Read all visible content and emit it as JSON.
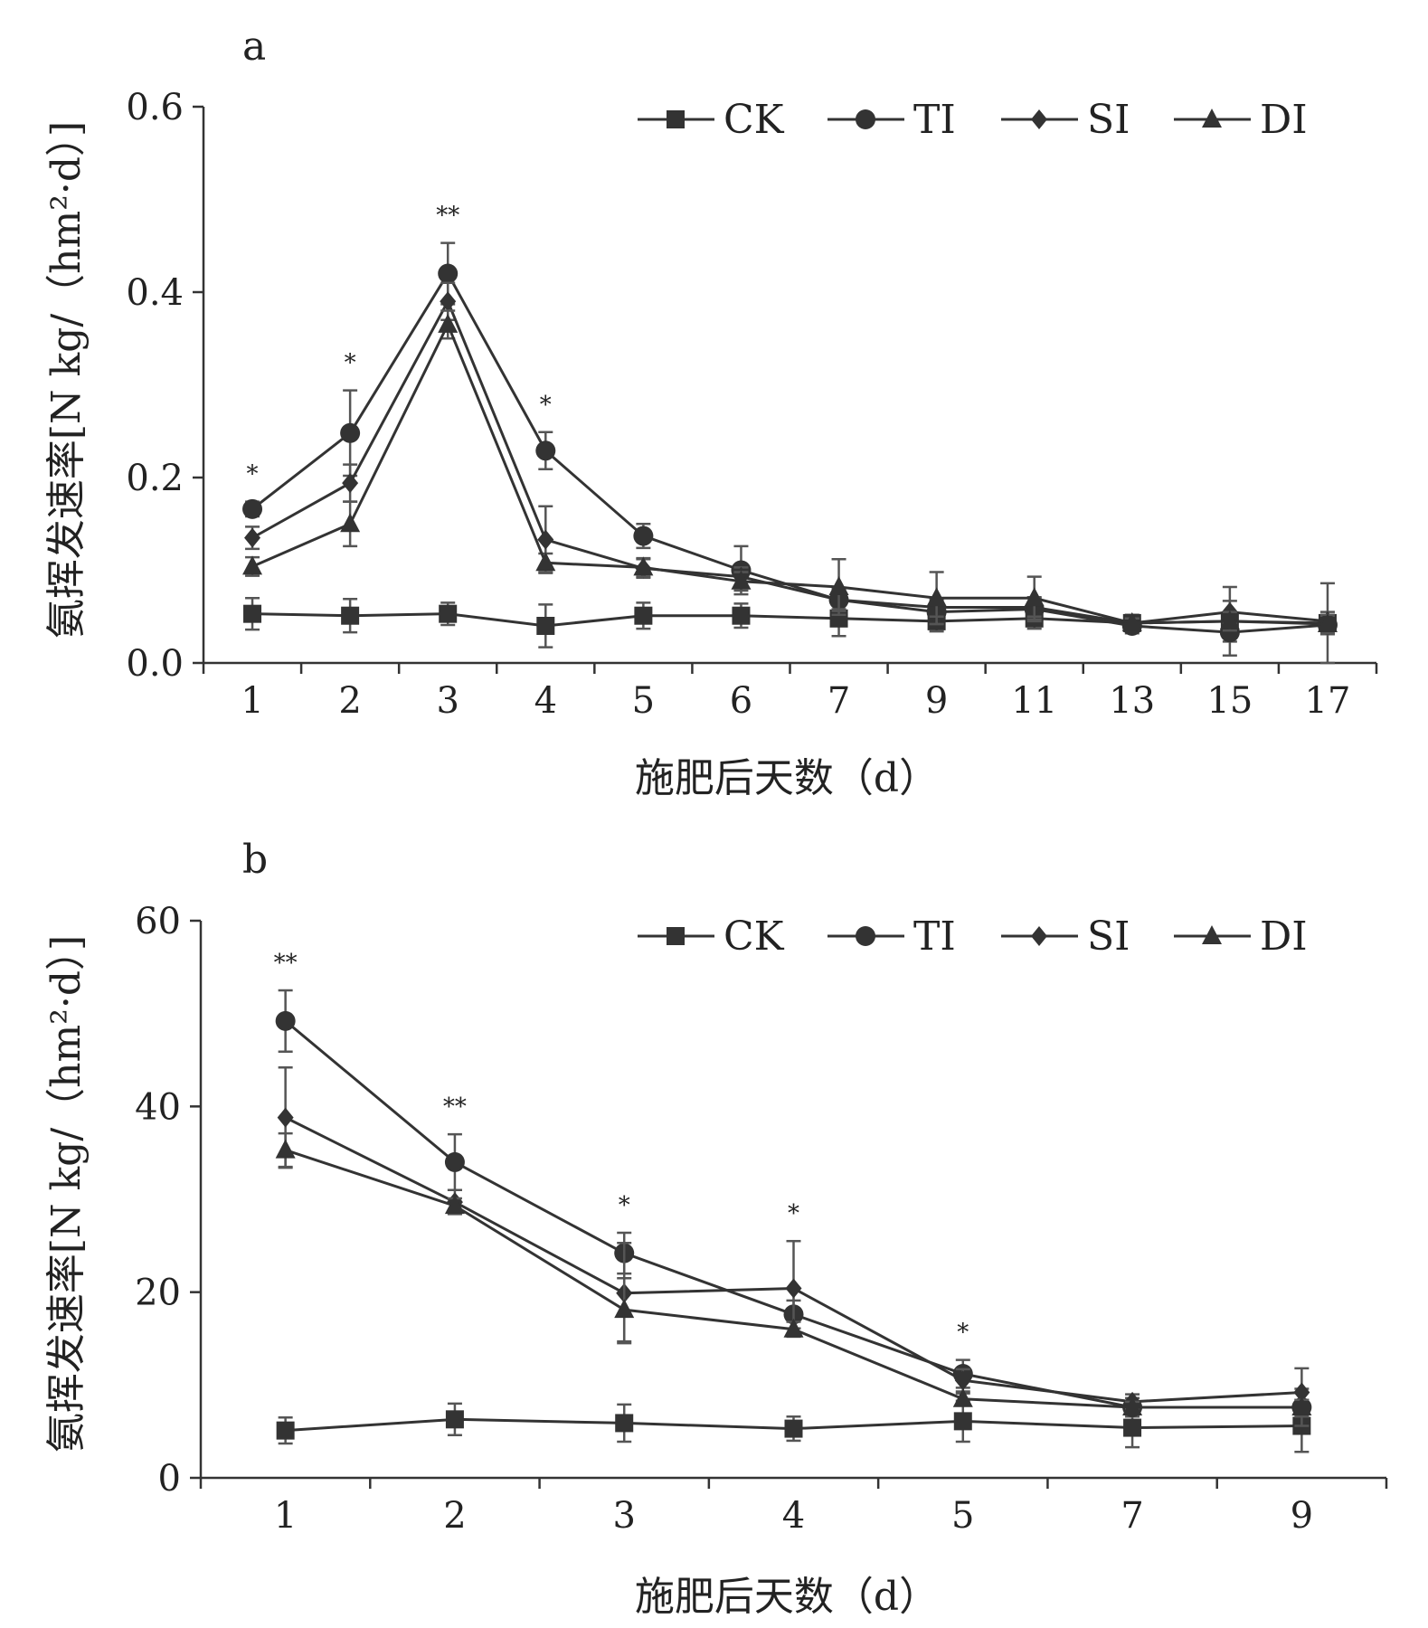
{
  "chart_data": [
    {
      "type": "line",
      "panel_label": "a",
      "xlabel": "施肥后天数（d）",
      "ylabel": "氨挥发速率[N kg/（hm²·d）]",
      "ylim": [
        0,
        0.6
      ],
      "yticks": [
        "0.0",
        "0.2",
        "0.4",
        "0.6"
      ],
      "categories": [
        "1",
        "2",
        "3",
        "4",
        "5",
        "6",
        "7",
        "9",
        "11",
        "13",
        "15",
        "17"
      ],
      "legend": "top-right",
      "significance": [
        "*",
        "*",
        "**",
        "*",
        "",
        "",
        "",
        "",
        "",
        "",
        "",
        ""
      ],
      "series": [
        {
          "name": "CK",
          "marker": "square",
          "values": [
            0.053,
            0.051,
            0.053,
            0.04,
            0.051,
            0.051,
            0.048,
            0.045,
            0.048,
            0.043,
            0.045,
            0.043
          ],
          "errors": [
            0.017,
            0.018,
            0.012,
            0.023,
            0.014,
            0.013,
            0.019,
            0.011,
            0.011,
            0.009,
            0.037,
            0.043
          ]
        },
        {
          "name": "TI",
          "marker": "circle",
          "values": [
            0.166,
            0.248,
            0.42,
            0.229,
            0.137,
            0.1,
            0.068,
            0.055,
            0.058,
            0.04,
            0.033,
            0.041
          ],
          "errors": [
            0.008,
            0.046,
            0.033,
            0.02,
            0.013,
            0.026,
            0.012,
            0.013,
            0.013,
            0.008,
            0.01,
            0.01
          ]
        },
        {
          "name": "SI",
          "marker": "diamond",
          "values": [
            0.135,
            0.194,
            0.39,
            0.133,
            0.102,
            0.093,
            0.068,
            0.06,
            0.06,
            0.043,
            0.055,
            0.045
          ],
          "errors": [
            0.012,
            0.02,
            0.02,
            0.036,
            0.01,
            0.01,
            0.01,
            0.01,
            0.01,
            0.005,
            0.012,
            0.01
          ]
        },
        {
          "name": "DI",
          "marker": "triangle",
          "values": [
            0.104,
            0.15,
            0.365,
            0.108,
            0.103,
            0.088,
            0.082,
            0.07,
            0.07,
            0.043,
            0.045,
            0.042
          ],
          "errors": [
            0.01,
            0.024,
            0.015,
            0.01,
            0.01,
            0.01,
            0.03,
            0.028,
            0.023,
            0.005,
            0.01,
            0.01
          ]
        }
      ]
    },
    {
      "type": "line",
      "panel_label": "b",
      "xlabel": "施肥后天数（d）",
      "ylabel": "氨挥发速率[N kg/（hm²·d）]",
      "ylim": [
        0,
        60
      ],
      "yticks": [
        "0",
        "20",
        "40",
        "60"
      ],
      "categories": [
        "1",
        "2",
        "3",
        "4",
        "5",
        "7",
        "9"
      ],
      "legend": "top-right",
      "significance": [
        "**",
        "**",
        "*",
        "*",
        "*",
        "",
        ""
      ],
      "series": [
        {
          "name": "CK",
          "marker": "square",
          "values": [
            5.1,
            6.3,
            5.9,
            5.3,
            6.1,
            5.4,
            5.6
          ],
          "errors": [
            1.4,
            1.7,
            2.0,
            1.3,
            2.2,
            2.1,
            2.8
          ]
        },
        {
          "name": "TI",
          "marker": "circle",
          "values": [
            49.2,
            34.0,
            24.2,
            17.6,
            11.2,
            7.6,
            7.6
          ],
          "errors": [
            3.3,
            3.0,
            2.2,
            1.5,
            1.5,
            1.0,
            2.0
          ]
        },
        {
          "name": "SI",
          "marker": "diamond",
          "values": [
            38.8,
            29.7,
            19.9,
            20.4,
            10.5,
            8.2,
            9.2
          ],
          "errors": [
            5.4,
            1.3,
            5.4,
            5.1,
            1.2,
            0.8,
            2.6
          ]
        },
        {
          "name": "DI",
          "marker": "triangle",
          "values": [
            35.3,
            29.3,
            18.1,
            16.0,
            8.5,
            7.6,
            7.6
          ],
          "errors": [
            1.8,
            0.8,
            3.4,
            0.8,
            0.6,
            0.6,
            0.8
          ]
        }
      ]
    }
  ]
}
